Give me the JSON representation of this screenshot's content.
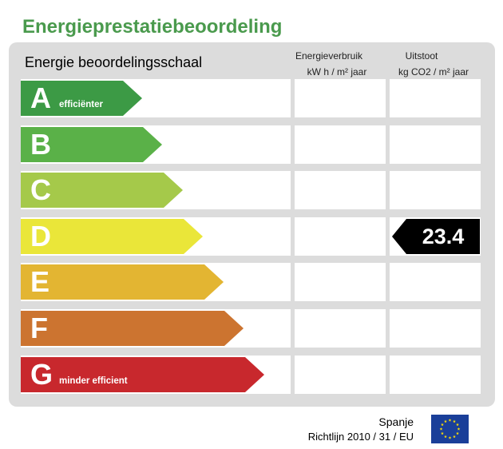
{
  "title": "Energieprestatiebeoordeling",
  "scale_header": "Energie beoordelingsschaal",
  "columns": {
    "consumption_line1": "Energieverbruik",
    "consumption_line2": "kW h / m² jaar",
    "emission_line1": "Uitstoot",
    "emission_line2": "kg CO2 / m² jaar"
  },
  "ratings": [
    {
      "letter": "A",
      "sub": "efficiënter",
      "color": "#3c9a45"
    },
    {
      "letter": "B",
      "sub": "",
      "color": "#5ab148"
    },
    {
      "letter": "C",
      "sub": "",
      "color": "#a5c94a"
    },
    {
      "letter": "D",
      "sub": "",
      "color": "#eae639"
    },
    {
      "letter": "E",
      "sub": "",
      "color": "#e3b532"
    },
    {
      "letter": "F",
      "sub": "",
      "color": "#cc7430"
    },
    {
      "letter": "G",
      "sub": "minder efficient",
      "color": "#c8282d"
    }
  ],
  "emission": {
    "value": "23.4",
    "rating": "D"
  },
  "footer": {
    "country": "Spanje",
    "directive": "Richtlijn 2010 / 31 / EU"
  },
  "flag": {
    "name": "eu-flag-icon",
    "background": "#1a3f99",
    "star_color": "#f5d90a"
  }
}
